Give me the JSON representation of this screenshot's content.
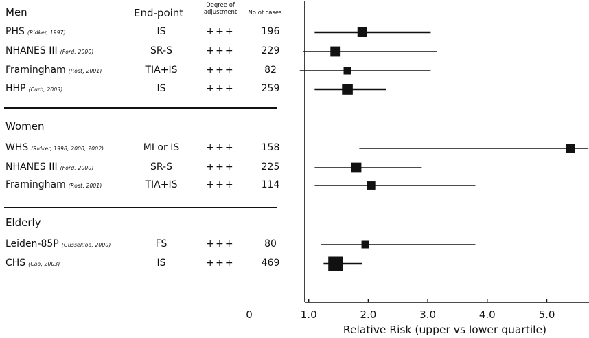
{
  "headers": {
    "endpoint": "End-point",
    "adjustment": "Degree of adjustment",
    "cases": "No of cases"
  },
  "groups": [
    {
      "name": "Men",
      "rows": [
        {
          "study": "PHS",
          "citation": "(Ridker, 1997)",
          "endpoint": "IS",
          "adjustment": "+++",
          "cases": "196"
        },
        {
          "study": "NHANES III",
          "citation": "(Ford, 2000)",
          "endpoint": "SR-S",
          "adjustment": "+++",
          "cases": "229"
        },
        {
          "study": "Framingham",
          "citation": "(Rost, 2001)",
          "endpoint": "TIA+IS",
          "adjustment": "+++",
          "cases": "82"
        },
        {
          "study": "HHP",
          "citation": "(Curb, 2003)",
          "endpoint": "IS",
          "adjustment": "+++",
          "cases": "259"
        }
      ]
    },
    {
      "name": "Women",
      "rows": [
        {
          "study": "WHS",
          "citation": "(Ridker, 1998, 2000, 2002)",
          "endpoint": "MI or IS",
          "adjustment": "+++",
          "cases": "158"
        },
        {
          "study": "NHANES III",
          "citation": "(Ford, 2000)",
          "endpoint": "SR-S",
          "adjustment": "+++",
          "cases": "225"
        },
        {
          "study": "Framingham",
          "citation": "(Rost, 2001)",
          "endpoint": "TIA+IS",
          "adjustment": "+++",
          "cases": "114"
        }
      ]
    },
    {
      "name": "Elderly",
      "rows": [
        {
          "study": "Leiden-85P",
          "citation": "(Gussekloo, 2000)",
          "endpoint": "FS",
          "adjustment": "+++",
          "cases": "80"
        },
        {
          "study": "CHS",
          "citation": "(Cao, 2003)",
          "endpoint": "IS",
          "adjustment": "+++",
          "cases": "469"
        }
      ]
    }
  ],
  "chart_data": {
    "type": "forest",
    "xlabel": "Relative Risk (upper vs lower quartile)",
    "xlim": [
      0,
      5.7
    ],
    "xticks": [
      0,
      1.0,
      2.0,
      3.0,
      4.0,
      5.0
    ],
    "xtick_labels": [
      "0",
      "1.0",
      "2.0",
      "3.0",
      "4.0",
      "5.0"
    ],
    "grid": false,
    "points": [
      {
        "group": "Men",
        "study": "PHS",
        "estimate": 1.9,
        "ci": [
          1.1,
          3.05
        ],
        "cases": 196
      },
      {
        "group": "Men",
        "study": "NHANES III",
        "estimate": 1.45,
        "ci": [
          0.9,
          3.15
        ],
        "cases": 229
      },
      {
        "group": "Men",
        "study": "Framingham",
        "estimate": 1.65,
        "ci": [
          0.85,
          3.05
        ],
        "cases": 82
      },
      {
        "group": "Men",
        "study": "HHP",
        "estimate": 1.65,
        "ci": [
          1.1,
          2.3
        ],
        "cases": 259
      },
      {
        "group": "Women",
        "study": "WHS",
        "estimate": 5.4,
        "ci": [
          1.85,
          5.7
        ],
        "cases": 158
      },
      {
        "group": "Women",
        "study": "NHANES III",
        "estimate": 1.8,
        "ci": [
          1.1,
          2.9
        ],
        "cases": 225
      },
      {
        "group": "Women",
        "study": "Framingham",
        "estimate": 2.05,
        "ci": [
          1.1,
          3.8
        ],
        "cases": 114
      },
      {
        "group": "Elderly",
        "study": "Leiden-85P",
        "estimate": 1.95,
        "ci": [
          1.2,
          3.8
        ],
        "cases": 80
      },
      {
        "group": "Elderly",
        "study": "CHS",
        "estimate": 1.45,
        "ci": [
          1.25,
          1.9
        ],
        "cases": 469
      }
    ]
  }
}
